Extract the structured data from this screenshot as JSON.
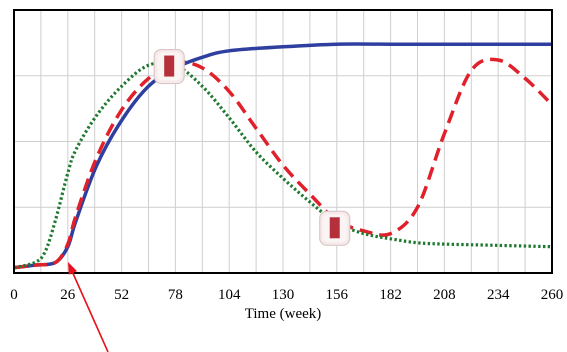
{
  "chart_data": {
    "type": "line",
    "xlabel": "Time (week)",
    "ylabel": "",
    "xlim": [
      0,
      260
    ],
    "ylim": [
      0,
      100
    ],
    "x_ticks": [
      0,
      26,
      52,
      78,
      104,
      130,
      156,
      182,
      208,
      234,
      260
    ],
    "grid": true,
    "legend": "none",
    "series": [
      {
        "style": "solid",
        "color": "#2e3fa0",
        "x": [
          0,
          10,
          20,
          26,
          30,
          40,
          52,
          65,
          78,
          91,
          104,
          130,
          156,
          182,
          208,
          234,
          260
        ],
        "y": [
          2,
          3,
          4,
          10,
          20,
          41,
          58,
          71,
          78,
          82,
          84.5,
          86,
          87,
          87,
          87,
          87,
          87
        ]
      },
      {
        "style": "dashed",
        "color": "#e0202a",
        "x": [
          0,
          10,
          20,
          26,
          30,
          40,
          52,
          65,
          78,
          91,
          104,
          117,
          130,
          143,
          156,
          169,
          182,
          195,
          208,
          221,
          234,
          247,
          260
        ],
        "y": [
          2,
          3,
          4,
          11,
          22,
          44,
          62,
          74,
          80,
          78,
          69,
          55,
          41,
          30,
          20,
          16,
          15,
          25,
          53,
          77,
          81,
          74,
          64
        ]
      },
      {
        "style": "dotted",
        "color": "#1f7a30",
        "x": [
          0,
          10,
          15,
          20,
          26,
          30,
          40,
          52,
          65,
          78,
          91,
          104,
          117,
          130,
          143,
          156,
          169,
          182,
          195,
          208,
          234,
          260
        ],
        "y": [
          2,
          4,
          8,
          20,
          38,
          47,
          60,
          71,
          79,
          79,
          71,
          59,
          46,
          36,
          27,
          19,
          15,
          13,
          11.5,
          11,
          10.5,
          10
        ]
      }
    ],
    "markers": [
      {
        "x": 75,
        "y": 78.5
      },
      {
        "x": 155,
        "y": 17
      }
    ]
  }
}
